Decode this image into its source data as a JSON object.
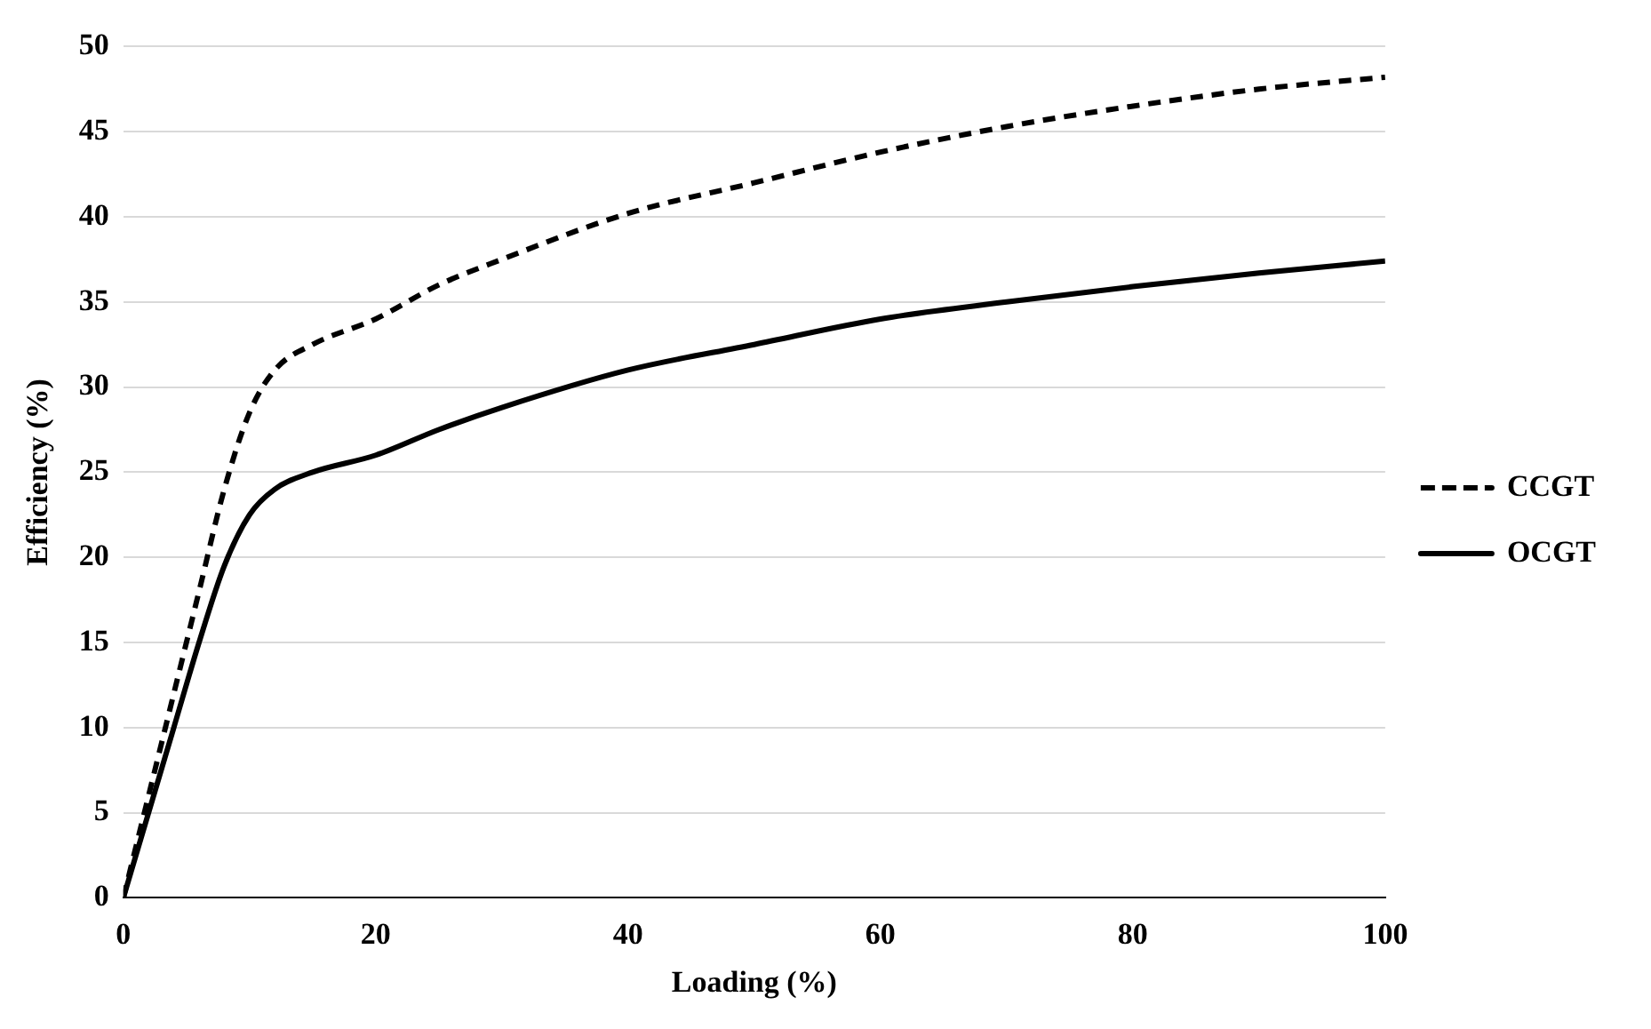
{
  "chart_data": {
    "type": "line",
    "xlabel": "Loading (%)",
    "ylabel": "Efficiency (%)",
    "xlim": [
      0,
      100
    ],
    "xticks": [
      0,
      20,
      40,
      60,
      80,
      100
    ],
    "ylim": [
      0,
      50
    ],
    "yticks": [
      0,
      5,
      10,
      15,
      20,
      25,
      30,
      35,
      40,
      45,
      50
    ],
    "grid": "y",
    "legend": "right",
    "marker": "none",
    "series": [
      {
        "name": "CCGT",
        "color": "#000000",
        "line_style": "dashed",
        "x": [
          0,
          2,
          4,
          6,
          8,
          10,
          12,
          15,
          20,
          25,
          30,
          40,
          50,
          60,
          70,
          80,
          90,
          100
        ],
        "values": [
          0,
          6,
          12,
          18,
          24,
          28.5,
          31,
          32.5,
          34,
          36,
          37.5,
          40.2,
          42,
          43.8,
          45.3,
          46.5,
          47.5,
          48.2
        ]
      },
      {
        "name": "OCGT",
        "color": "#000000",
        "line_style": "solid",
        "x": [
          0,
          2,
          4,
          6,
          8,
          10,
          12,
          15,
          20,
          25,
          30,
          40,
          50,
          60,
          70,
          80,
          90,
          100
        ],
        "values": [
          0,
          5,
          10,
          15,
          19.5,
          22.5,
          24,
          25,
          26,
          27.5,
          28.8,
          31,
          32.5,
          34,
          35,
          35.9,
          36.7,
          37.4
        ]
      }
    ]
  }
}
